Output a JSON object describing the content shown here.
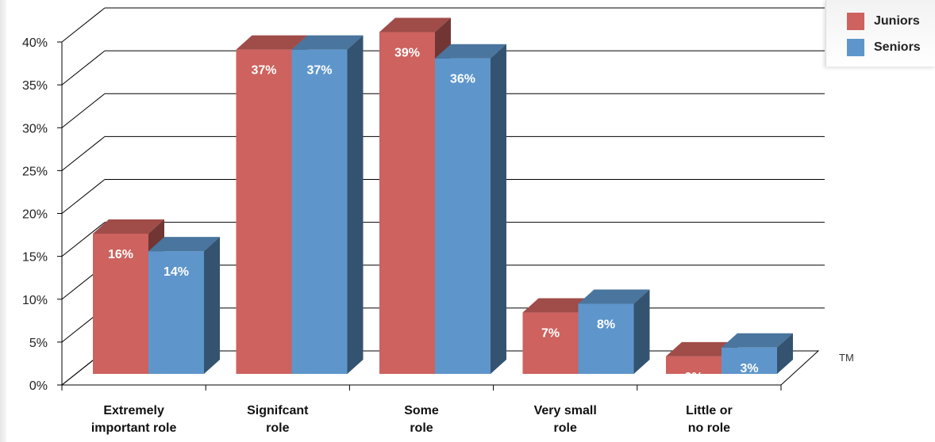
{
  "chart_data": {
    "type": "bar",
    "categories": [
      [
        "Extremely",
        "important role"
      ],
      [
        "Signifcant",
        "role"
      ],
      [
        "Some",
        "role"
      ],
      [
        "Very small",
        "role"
      ],
      [
        "Little or",
        "no role"
      ]
    ],
    "series": [
      {
        "name": "Juniors",
        "values": [
          16,
          37,
          39,
          7,
          2
        ],
        "labels": [
          "16%",
          "37%",
          "39%",
          "7%",
          "2%"
        ],
        "color": "#CD625E"
      },
      {
        "name": "Seniors",
        "values": [
          14,
          37,
          36,
          8,
          3
        ],
        "labels": [
          "14%",
          "37%",
          "36%",
          "8%",
          "3%"
        ],
        "color": "#5E96CB"
      }
    ],
    "y_ticks": [
      "0%",
      "5%",
      "10%",
      "15%",
      "20%",
      "25%",
      "30%",
      "35%",
      "40%"
    ],
    "ylim": [
      0,
      40
    ],
    "style": "3d",
    "grid": true,
    "legend_position": "top-right",
    "title": "",
    "xlabel": "",
    "ylabel": ""
  },
  "legend": {
    "juniors_label": "Juniors",
    "seniors_label": "Seniors",
    "juniors_color": "#CD625E",
    "seniors_color": "#5E96CB"
  },
  "trademark": "TM"
}
